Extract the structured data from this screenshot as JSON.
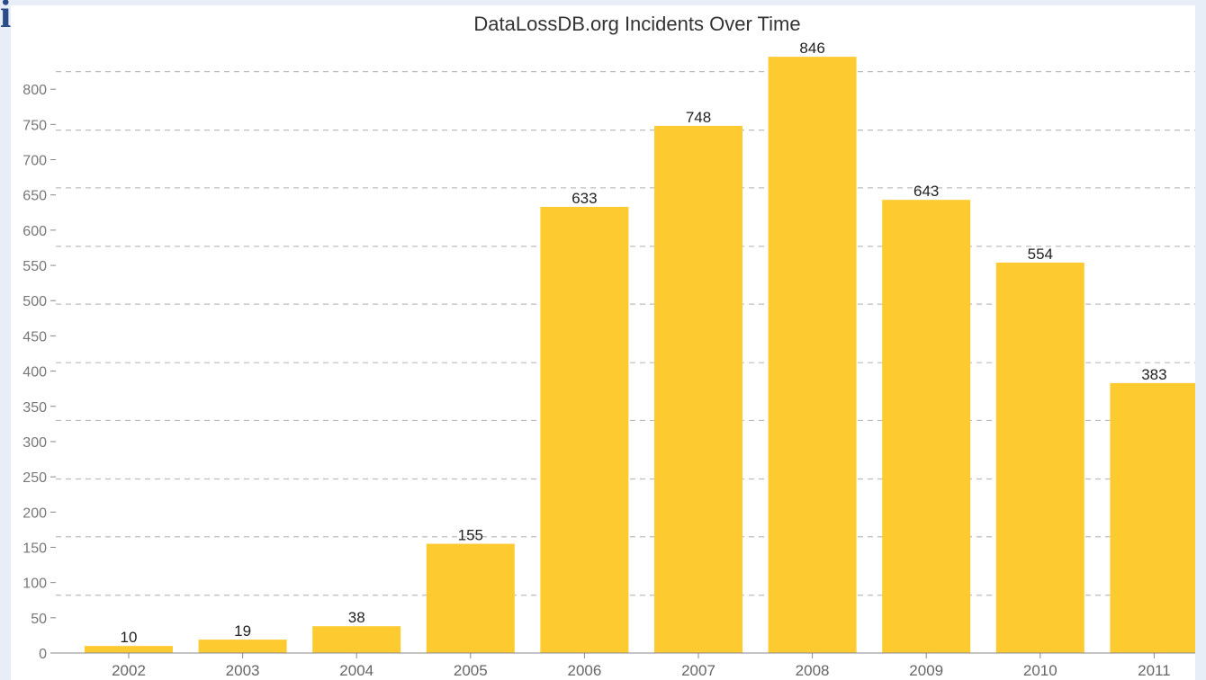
{
  "logo_text": "ios",
  "colors": {
    "bar": "#fdca30",
    "grid": "#bdbdbd",
    "axis": "#888888"
  },
  "chart_data": {
    "type": "bar",
    "title": "DataLossDB.org Incidents Over Time",
    "xlabel": "",
    "ylabel": "",
    "categories": [
      "2002",
      "2003",
      "2004",
      "2005",
      "2006",
      "2007",
      "2008",
      "2009",
      "2010",
      "2011"
    ],
    "values": [
      10,
      19,
      38,
      155,
      633,
      748,
      846,
      643,
      554,
      383
    ],
    "ylim": [
      0,
      850
    ],
    "yticks": [
      0,
      50,
      100,
      150,
      200,
      250,
      300,
      350,
      400,
      450,
      500,
      550,
      600,
      650,
      700,
      750,
      800
    ],
    "gridlines": [
      82,
      165,
      247,
      330,
      412,
      495,
      577,
      660,
      742,
      825
    ],
    "grid": true,
    "grid_style": "dashed",
    "data_labels": true,
    "legend": "none"
  }
}
